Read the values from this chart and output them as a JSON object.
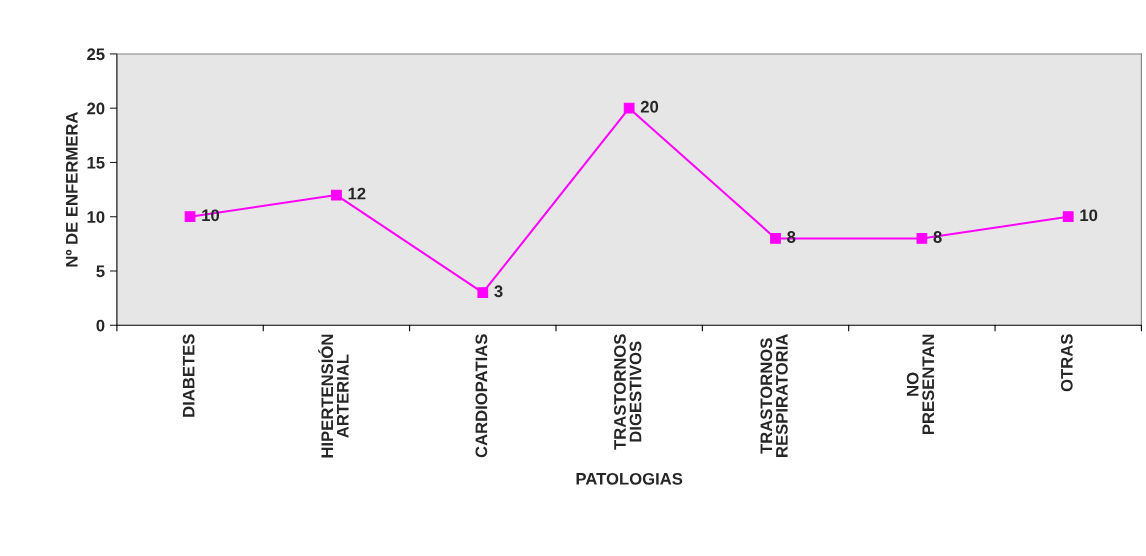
{
  "chart_data": {
    "type": "line",
    "xlabel": "PATOLOGIAS",
    "ylabel": "Nº DE ENFERMERA",
    "categories": [
      "DIABETES",
      "HIPERTENSIÓN\nARTERIAL",
      "CARDIOPATIAS",
      "TRASTORNOS\nDIGESTIVOS",
      "TRASTORNOS\nRESPIRATORIA",
      "NO\nPRESENTAN",
      "OTRAS"
    ],
    "series": [
      {
        "color": "#ff00ff",
        "values": [
          10,
          12,
          3,
          20,
          8,
          8,
          10
        ]
      }
    ],
    "ylim": [
      0,
      25
    ],
    "yticks": [
      0,
      5,
      10,
      15,
      20,
      25
    ],
    "grid": false,
    "marker": "square",
    "line_style": "solid",
    "data_labels": true
  }
}
